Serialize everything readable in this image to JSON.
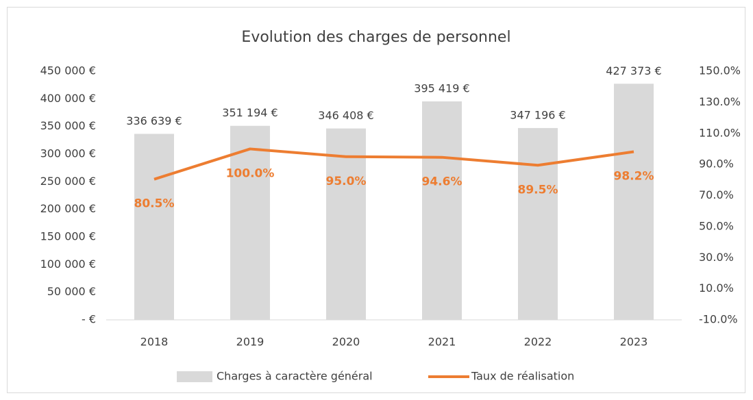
{
  "chart_data": {
    "type": "bar",
    "title": "Evolution des charges de personnel",
    "categories": [
      "2018",
      "2019",
      "2020",
      "2021",
      "2022",
      "2023"
    ],
    "series": [
      {
        "name": "Charges à caractère général",
        "type": "bar",
        "color": "#d9d9d9",
        "values": [
          336639,
          351194,
          346408,
          395419,
          347196,
          427373
        ],
        "value_labels": [
          "336 639 €",
          "351 194 €",
          "346 408 €",
          "395 419 €",
          "347 196 €",
          "427 373 €"
        ]
      },
      {
        "name": "Taux de réalisation",
        "type": "line",
        "axis": "y2",
        "color": "#ed7d31",
        "values": [
          80.5,
          100.0,
          95.0,
          94.6,
          89.5,
          98.2
        ],
        "value_labels": [
          "80.5%",
          "100.0%",
          "95.0%",
          "94.6%",
          "89.5%",
          "98.2%"
        ]
      }
    ],
    "ylim": [
      0,
      450000
    ],
    "yticks": [
      {
        "value": 0,
        "label": "-   €"
      },
      {
        "value": 50000,
        "label": "50 000 €"
      },
      {
        "value": 100000,
        "label": "100 000 €"
      },
      {
        "value": 150000,
        "label": "150 000 €"
      },
      {
        "value": 200000,
        "label": "200 000 €"
      },
      {
        "value": 250000,
        "label": "250 000 €"
      },
      {
        "value": 300000,
        "label": "300 000 €"
      },
      {
        "value": 350000,
        "label": "350 000 €"
      },
      {
        "value": 400000,
        "label": "400 000 €"
      },
      {
        "value": 450000,
        "label": "450 000 €"
      }
    ],
    "y2lim": [
      -10,
      150
    ],
    "y2ticks": [
      {
        "value": -10,
        "label": "-10.0%"
      },
      {
        "value": 10,
        "label": "10.0%"
      },
      {
        "value": 30,
        "label": "30.0%"
      },
      {
        "value": 50,
        "label": "50.0%"
      },
      {
        "value": 70,
        "label": "70.0%"
      },
      {
        "value": 90,
        "label": "90.0%"
      },
      {
        "value": 110,
        "label": "110.0%"
      },
      {
        "value": 130,
        "label": "130.0%"
      },
      {
        "value": 150,
        "label": "150.0%"
      }
    ],
    "legend": "bottom"
  }
}
